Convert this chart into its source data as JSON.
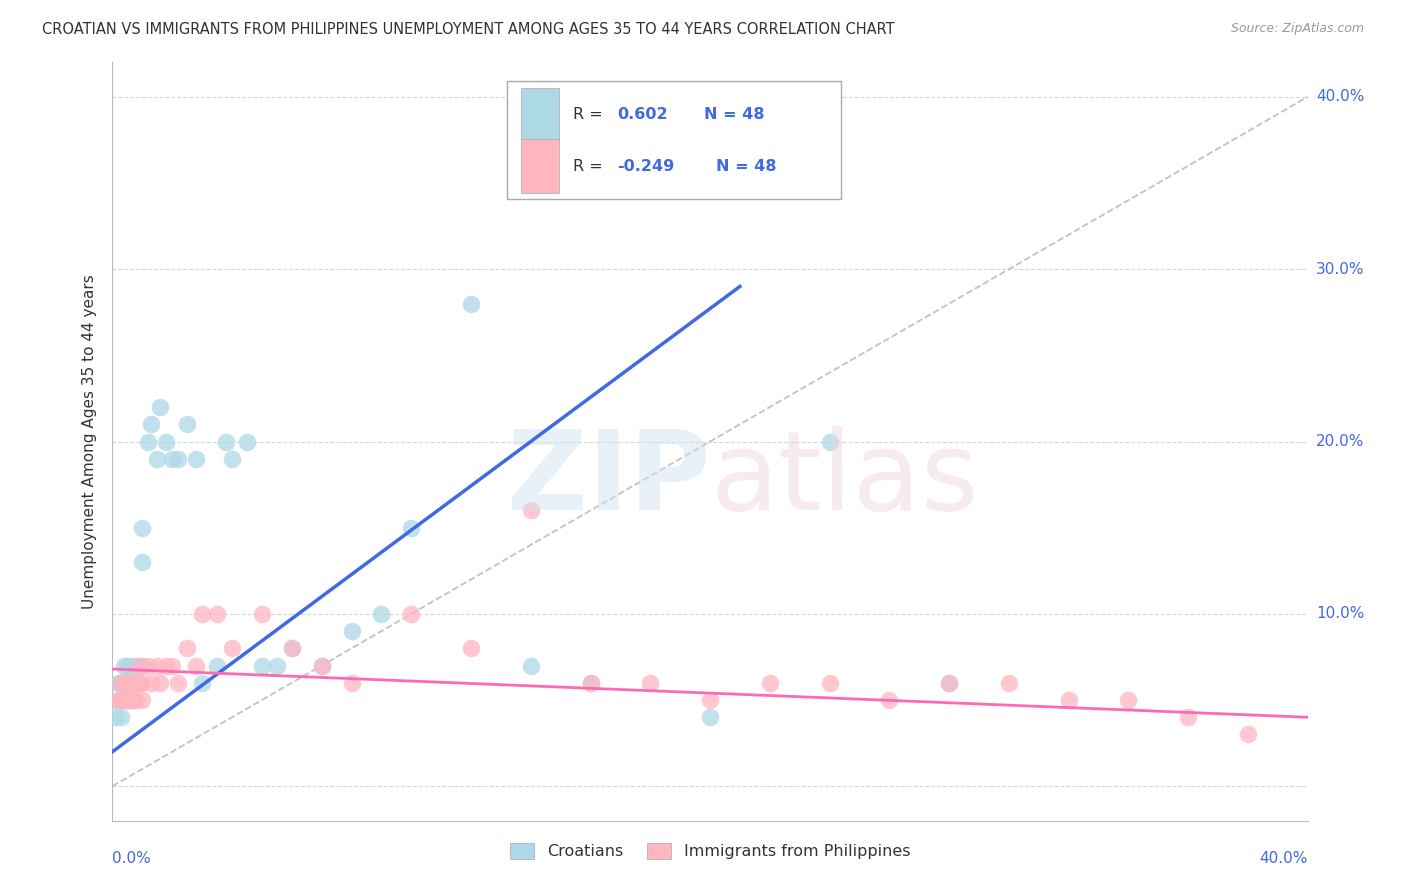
{
  "title": "CROATIAN VS IMMIGRANTS FROM PHILIPPINES UNEMPLOYMENT AMONG AGES 35 TO 44 YEARS CORRELATION CHART",
  "source": "Source: ZipAtlas.com",
  "ylabel": "Unemployment Among Ages 35 to 44 years",
  "xlim": [
    0.0,
    0.4
  ],
  "ylim": [
    -0.02,
    0.42
  ],
  "r_croatian": 0.602,
  "n_croatian": 48,
  "r_philippines": -0.249,
  "n_philippines": 48,
  "legend_croatian": "Croatians",
  "legend_philippines": "Immigrants from Philippines",
  "color_croatian": "#ADD8E6",
  "color_philippines": "#FFB6C1",
  "color_croatian_line": "#4169E1",
  "color_philippines_line": "#FF69B4",
  "color_diagonal": "#BBBBBB",
  "croatian_x": [
    0.001,
    0.002,
    0.002,
    0.003,
    0.003,
    0.003,
    0.004,
    0.004,
    0.004,
    0.005,
    0.005,
    0.005,
    0.006,
    0.006,
    0.007,
    0.007,
    0.008,
    0.009,
    0.01,
    0.01,
    0.01,
    0.012,
    0.013,
    0.015,
    0.016,
    0.018,
    0.02,
    0.022,
    0.025,
    0.028,
    0.03,
    0.035,
    0.038,
    0.04,
    0.045,
    0.05,
    0.055,
    0.06,
    0.07,
    0.08,
    0.09,
    0.1,
    0.12,
    0.14,
    0.16,
    0.2,
    0.24,
    0.28
  ],
  "croatian_y": [
    0.04,
    0.05,
    0.06,
    0.04,
    0.05,
    0.06,
    0.05,
    0.06,
    0.07,
    0.05,
    0.06,
    0.07,
    0.05,
    0.07,
    0.05,
    0.06,
    0.07,
    0.06,
    0.07,
    0.13,
    0.15,
    0.2,
    0.21,
    0.19,
    0.22,
    0.2,
    0.19,
    0.19,
    0.21,
    0.19,
    0.06,
    0.07,
    0.2,
    0.19,
    0.2,
    0.07,
    0.07,
    0.08,
    0.07,
    0.09,
    0.1,
    0.15,
    0.28,
    0.07,
    0.06,
    0.04,
    0.2,
    0.06
  ],
  "philippines_x": [
    0.002,
    0.003,
    0.003,
    0.004,
    0.004,
    0.005,
    0.005,
    0.006,
    0.006,
    0.007,
    0.007,
    0.008,
    0.008,
    0.009,
    0.009,
    0.01,
    0.01,
    0.012,
    0.013,
    0.015,
    0.016,
    0.018,
    0.02,
    0.022,
    0.025,
    0.028,
    0.03,
    0.035,
    0.04,
    0.05,
    0.06,
    0.07,
    0.08,
    0.1,
    0.12,
    0.14,
    0.16,
    0.18,
    0.2,
    0.22,
    0.24,
    0.26,
    0.28,
    0.3,
    0.32,
    0.34,
    0.36,
    0.38
  ],
  "philippines_y": [
    0.05,
    0.05,
    0.06,
    0.05,
    0.06,
    0.05,
    0.06,
    0.05,
    0.06,
    0.05,
    0.06,
    0.06,
    0.05,
    0.06,
    0.07,
    0.05,
    0.06,
    0.07,
    0.06,
    0.07,
    0.06,
    0.07,
    0.07,
    0.06,
    0.08,
    0.07,
    0.1,
    0.1,
    0.08,
    0.1,
    0.08,
    0.07,
    0.06,
    0.1,
    0.08,
    0.16,
    0.06,
    0.06,
    0.05,
    0.06,
    0.06,
    0.05,
    0.06,
    0.06,
    0.05,
    0.05,
    0.04,
    0.03
  ],
  "line_croatian_x0": 0.0,
  "line_croatian_y0": 0.02,
  "line_croatian_x1": 0.21,
  "line_croatian_y1": 0.29,
  "line_philippines_x0": 0.0,
  "line_philippines_y0": 0.068,
  "line_philippines_x1": 0.4,
  "line_philippines_y1": 0.04
}
